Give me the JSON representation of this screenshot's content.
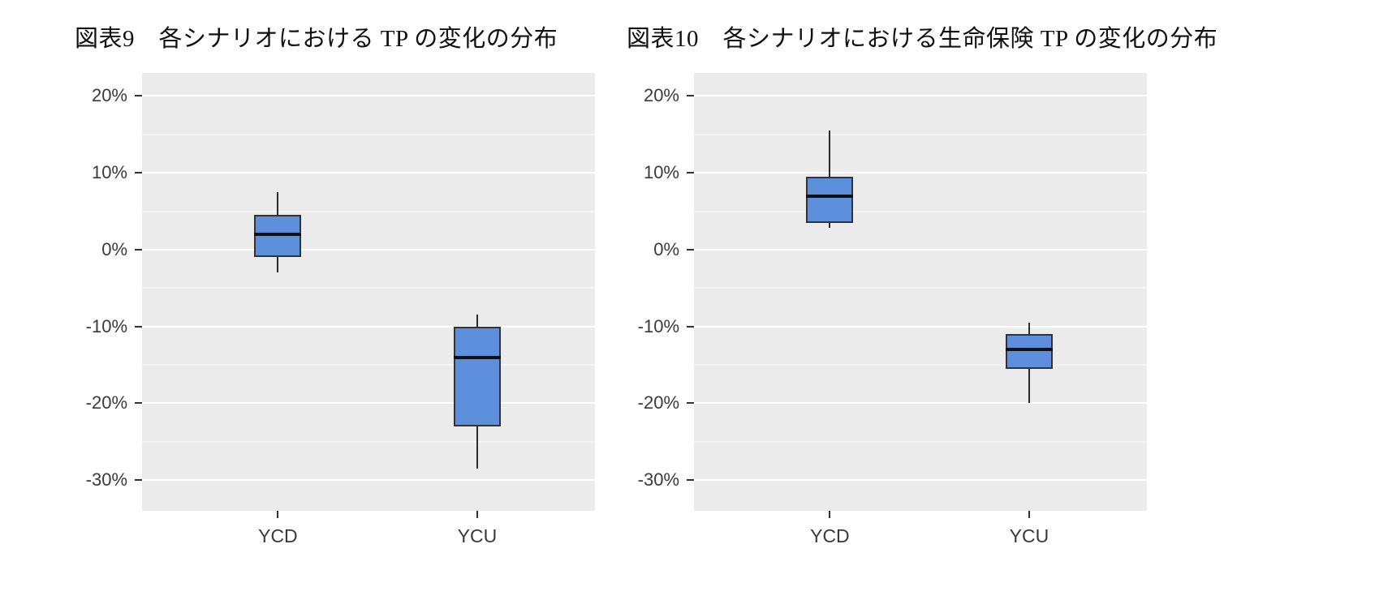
{
  "page": {
    "background": "#ffffff"
  },
  "chart_data": [
    {
      "id": "figure-9",
      "type": "boxplot",
      "title": "図表9　各シナリオにおける TP の変化の分布",
      "categories": [
        "YCD",
        "YCU"
      ],
      "y_axis": {
        "ticks": [
          "20%",
          "10%",
          "0%",
          "-10%",
          "-20%",
          "-30%"
        ],
        "tick_values": [
          20,
          10,
          0,
          -10,
          -20,
          -30
        ],
        "minor_values": [
          15,
          5,
          -5,
          -15,
          -25
        ],
        "range": [
          23,
          -34
        ],
        "unit": "%"
      },
      "series": [
        {
          "category": "YCD",
          "whisker_low": -3,
          "q1": -1,
          "median": 2,
          "q3": 4.5,
          "whisker_high": 7.5
        },
        {
          "category": "YCU",
          "whisker_low": -28.5,
          "q1": -23,
          "median": -14,
          "q3": -10,
          "whisker_high": -8.5
        }
      ],
      "colors": {
        "box_fill": "#5E8FDC",
        "box_border": "#333333",
        "median": "#111111",
        "plot_bg": "#EBEBEB",
        "grid": "#FFFFFF"
      },
      "legend": "none",
      "grid": "on"
    },
    {
      "id": "figure-10",
      "type": "boxplot",
      "title": "図表10　各シナリオにおける生命保険 TP の変化の分布",
      "categories": [
        "YCD",
        "YCU"
      ],
      "y_axis": {
        "ticks": [
          "20%",
          "10%",
          "0%",
          "-10%",
          "-20%",
          "-30%"
        ],
        "tick_values": [
          20,
          10,
          0,
          -10,
          -20,
          -30
        ],
        "minor_values": [
          15,
          5,
          -5,
          -15,
          -25
        ],
        "range": [
          23,
          -34
        ],
        "unit": "%"
      },
      "series": [
        {
          "category": "YCD",
          "whisker_low": 2.8,
          "q1": 3.5,
          "median": 7,
          "q3": 9.5,
          "whisker_high": 15.5
        },
        {
          "category": "YCU",
          "whisker_low": -20,
          "q1": -15.5,
          "median": -13,
          "q3": -11,
          "whisker_high": -9.5
        }
      ],
      "colors": {
        "box_fill": "#5E8FDC",
        "box_border": "#333333",
        "median": "#111111",
        "plot_bg": "#EBEBEB",
        "grid": "#FFFFFF"
      },
      "legend": "none",
      "grid": "on"
    }
  ]
}
